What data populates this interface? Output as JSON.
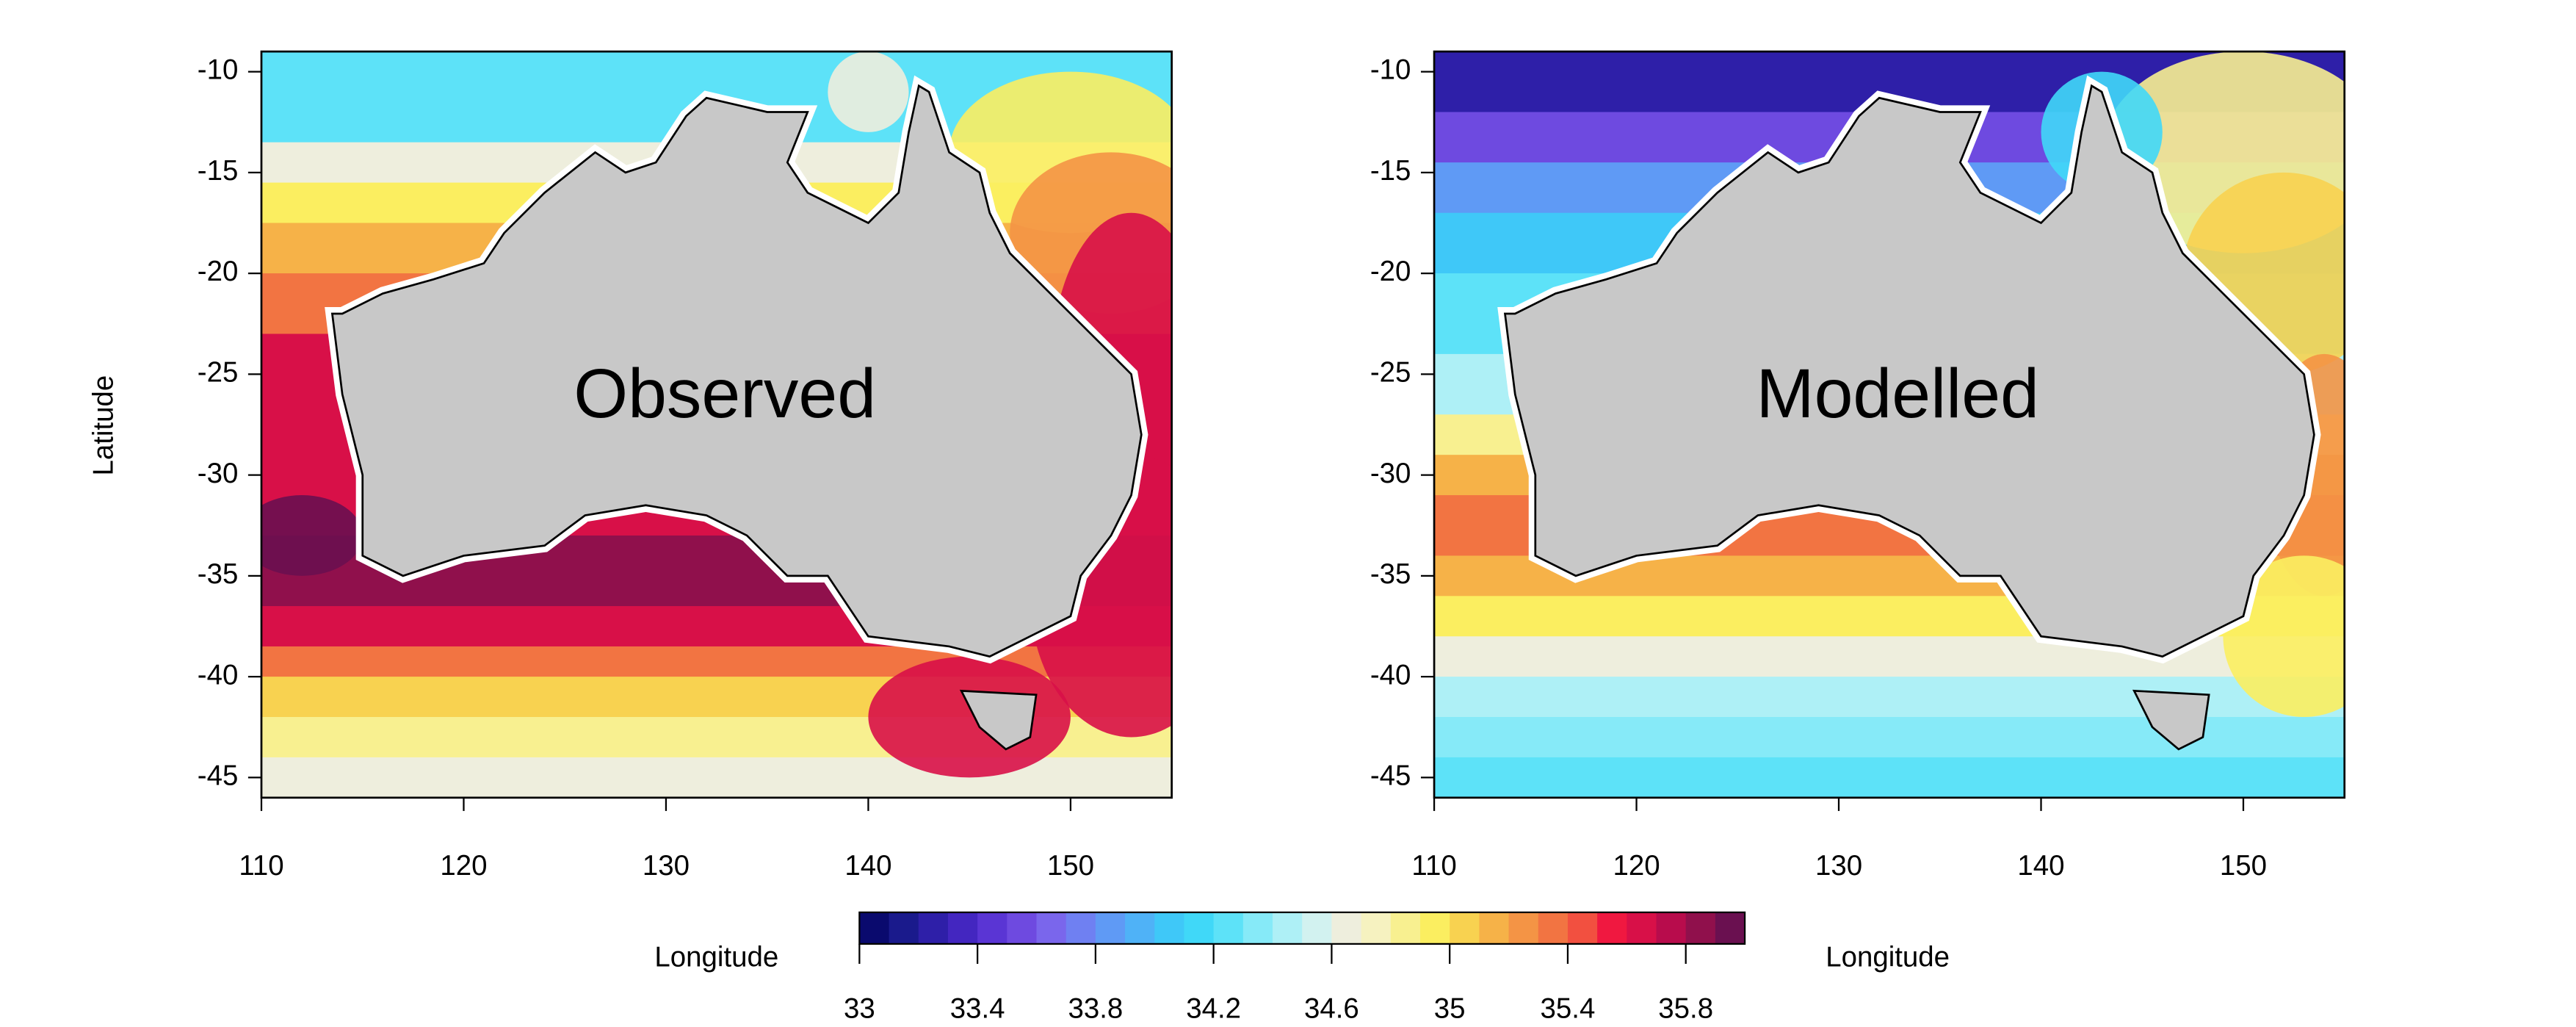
{
  "chart_data": [
    {
      "type": "map",
      "title": "Observed",
      "ylabel": "Latitude",
      "xlim": [
        110,
        155
      ],
      "ylim": [
        -46,
        -9
      ],
      "xticks": [
        110,
        120,
        130,
        140,
        150
      ],
      "yticks": [
        -10,
        -15,
        -20,
        -25,
        -30,
        -35,
        -40,
        -45
      ]
    },
    {
      "type": "map",
      "title": "Modelled",
      "xlim": [
        110,
        155
      ],
      "ylim": [
        -46,
        -9
      ],
      "xticks": [
        110,
        120,
        130,
        140,
        150
      ],
      "yticks": [
        -10,
        -15,
        -20,
        -25,
        -30,
        -35,
        -40,
        -45
      ]
    }
  ],
  "colorbar": {
    "left_label": "Longitude",
    "right_label": "Longitude",
    "lim": [
      33,
      36
    ],
    "ticks": [
      33,
      33.4,
      33.8,
      34.2,
      34.6,
      35,
      35.4,
      35.8
    ],
    "colors": [
      "#0a0a6e",
      "#1a1a8c",
      "#2e1fa8",
      "#4326c0",
      "#5a35d4",
      "#6e4ae0",
      "#7a66ec",
      "#6f80f2",
      "#5f9af5",
      "#4fb2f7",
      "#3fc8f8",
      "#40d8f8",
      "#5de2f8",
      "#86eaf8",
      "#aef0f6",
      "#d2f2f0",
      "#eeeedd",
      "#f6f2c0",
      "#f8f090",
      "#fbee60",
      "#f8d250",
      "#f6b248",
      "#f49445",
      "#f27442",
      "#f25040",
      "#f01840",
      "#d81048",
      "#b80c4c",
      "#90104c",
      "#6a1050"
    ]
  }
}
